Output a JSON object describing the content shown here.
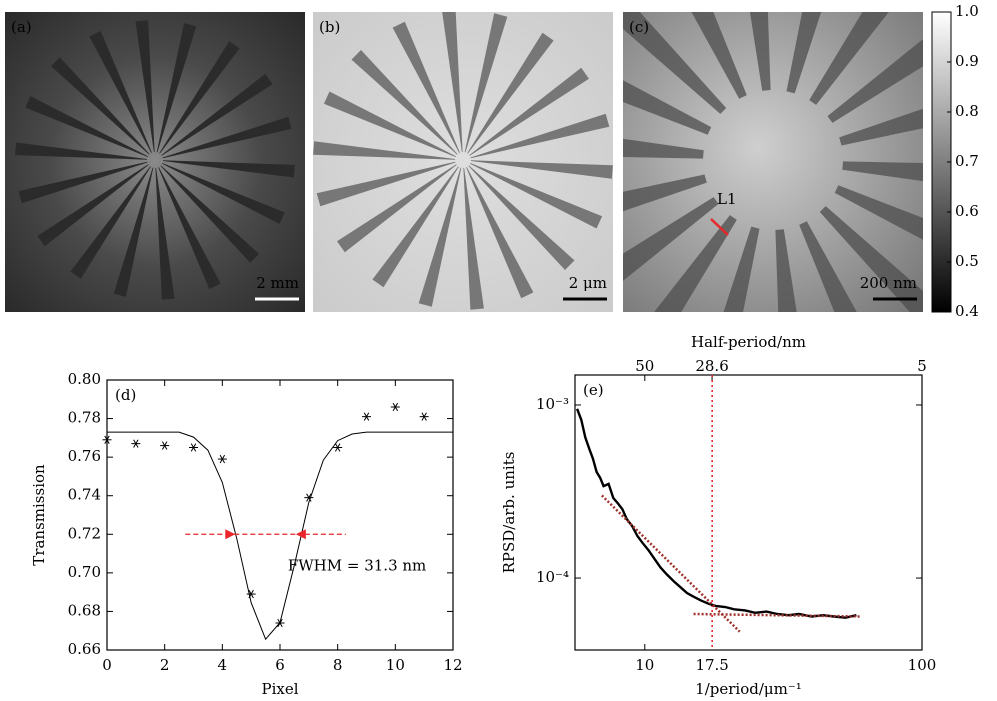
{
  "panels": [
    {
      "label": "(a)",
      "scale_bar": "2 mm"
    },
    {
      "label": "(b)",
      "scale_bar": "2 μm"
    },
    {
      "label": "(c)",
      "scale_bar": "200 nm",
      "marker": "L1"
    }
  ],
  "chart_data": [
    {
      "type": "colorbar",
      "ylim": [
        0.4,
        1.0
      ],
      "yticks": [
        0.4,
        0.5,
        0.6,
        0.7,
        0.8,
        0.9,
        {
          "value": 1.0,
          "label": "1.0"
        }
      ]
    },
    {
      "type": "scatter",
      "label": "(d)",
      "xlabel": "Pixel",
      "ylabel": "Transmission",
      "xlim": [
        0,
        12
      ],
      "ylim": [
        0.66,
        0.8
      ],
      "xticks": [
        0,
        2,
        4,
        6,
        8,
        10,
        12
      ],
      "yticks": [
        0.66,
        0.68,
        {
          "value": 0.7,
          "label": "0.70"
        },
        0.72,
        0.74,
        0.76,
        0.78,
        {
          "value": 0.8,
          "label": "0.80"
        }
      ],
      "series": [
        {
          "type": "scatter",
          "color": "#000000",
          "x": [
            0,
            1,
            2,
            3,
            4,
            5,
            6,
            7,
            8,
            9,
            10,
            11
          ],
          "values": [
            0.769,
            0.767,
            0.766,
            0.765,
            0.759,
            0.689,
            0.674,
            0.739,
            0.765,
            0.781,
            0.786,
            0.781
          ]
        },
        {
          "type": "line",
          "color": "#000000",
          "x": [
            0,
            1,
            2,
            2.5,
            3,
            3.5,
            4,
            4.5,
            5,
            5.5,
            6,
            6.5,
            7,
            7.5,
            8,
            8.5,
            9,
            10,
            11,
            12
          ],
          "values": [
            0.773,
            0.773,
            0.773,
            0.773,
            0.7704,
            0.7636,
            0.7469,
            0.7177,
            0.6845,
            0.6656,
            0.6742,
            0.7041,
            0.7365,
            0.7584,
            0.7686,
            0.772,
            0.773,
            0.773,
            0.773,
            0.773
          ]
        }
      ],
      "annotation": {
        "text": "FWHM = 31.3 nm",
        "color": "#e8262b",
        "x": [
          4.45,
          6.55
        ],
        "y": 0.72
      }
    },
    {
      "type": "line",
      "label": "(e)",
      "xlabel": "1/period/μm⁻¹",
      "ylabel": "RPSD/arb. units",
      "x2label": "Half-period/nm",
      "xscale": "log",
      "yscale": "log",
      "x2scale": "reciprocal",
      "xlim": [
        5.6,
        100
      ],
      "ylim": [
        3.84e-05,
        0.00149
      ],
      "xticks": [
        10,
        100
      ],
      "yticks": [
        {
          "value": 0.0001,
          "label": "10⁻⁴"
        },
        {
          "value": 0.001,
          "label": "10⁻³"
        }
      ],
      "x2lim": [
        89.3,
        5
      ],
      "x2ticks": [
        50,
        28.6,
        5
      ],
      "series": [
        {
          "type": "line",
          "color": "#000000",
          "x": [
            5.7,
            5.9,
            6.1,
            6.3,
            6.5,
            6.7,
            6.9,
            7.1,
            7.4,
            7.7,
            8,
            8.3,
            8.6,
            9,
            9.4,
            9.8,
            10.3,
            10.8,
            11.4,
            12,
            12.7,
            13.4,
            14.2,
            15,
            16,
            17,
            18,
            19.5,
            21,
            23,
            25,
            27.5,
            30,
            33,
            36,
            40,
            44,
            48,
            53,
            58
          ],
          "values": [
            0.00095,
            0.00082,
            0.00065,
            0.00056,
            0.00049,
            0.00041,
            0.00038,
            0.00034,
            0.00035,
            0.00029,
            0.00027,
            0.00025,
            0.00022,
            0.0002,
            0.000175,
            0.00016,
            0.000145,
            0.00013,
            0.000115,
            0.000105,
            9.6e-05,
            8.9e-05,
            8.2e-05,
            7.8e-05,
            7.4e-05,
            7.1e-05,
            6.9e-05,
            6.8e-05,
            6.6e-05,
            6.5e-05,
            6.3e-05,
            6.4e-05,
            6.2e-05,
            6.1e-05,
            6.2e-05,
            6e-05,
            6.1e-05,
            6e-05,
            5.9e-05,
            6.1e-05
          ]
        },
        {
          "type": "fit",
          "color": "#a0302a",
          "x": [
            7,
            22
          ],
          "values": [
            0.0003,
            4.9e-05
          ]
        },
        {
          "type": "fit",
          "color": "#a0302a",
          "x": [
            15,
            60
          ],
          "values": [
            6.2e-05,
            6e-05
          ]
        }
      ],
      "vline": {
        "x": 17.5,
        "color": "#e8262b"
      }
    }
  ]
}
